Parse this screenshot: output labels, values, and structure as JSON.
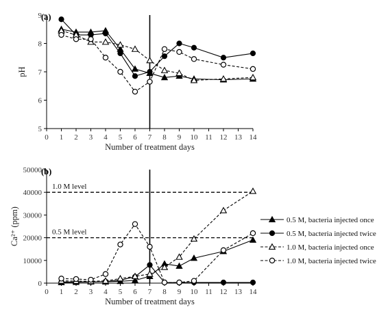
{
  "chart_data": [
    {
      "type": "line",
      "panel_label": "(a)",
      "xlabel": "Number of treatment days",
      "ylabel": "pH",
      "xlim": [
        0,
        14
      ],
      "ylim": [
        5,
        9
      ],
      "xticks": [
        "0",
        "1",
        "2",
        "3",
        "4",
        "5",
        "6",
        "7",
        "8",
        "9",
        "10",
        "11",
        "12",
        "13",
        "14"
      ],
      "yticks": [
        "5",
        "6",
        "7",
        "8",
        "9"
      ],
      "vline_x": 7,
      "grid": false,
      "series": [
        {
          "key": "s1",
          "marker": "filled-triangle",
          "dashed": false,
          "x": [
            1,
            2,
            3,
            4,
            5,
            6,
            7,
            8,
            9,
            10,
            12,
            14
          ],
          "y": [
            8.5,
            8.4,
            8.4,
            8.45,
            7.8,
            7.1,
            6.95,
            6.8,
            6.85,
            6.75,
            6.72,
            6.75
          ]
        },
        {
          "key": "s2",
          "marker": "filled-circle",
          "dashed": false,
          "x": [
            1,
            2,
            3,
            4,
            5,
            6,
            7,
            8,
            9,
            10,
            12,
            14
          ],
          "y": [
            8.85,
            8.3,
            8.3,
            8.35,
            7.65,
            6.85,
            7.0,
            7.55,
            8.0,
            7.85,
            7.5,
            7.65
          ]
        },
        {
          "key": "s3",
          "marker": "open-triangle",
          "dashed": true,
          "x": [
            1,
            2,
            3,
            4,
            5,
            6,
            7,
            8,
            9,
            10,
            12,
            14
          ],
          "y": [
            8.45,
            8.3,
            8.05,
            8.05,
            7.95,
            7.8,
            7.4,
            7.05,
            6.95,
            6.7,
            6.75,
            6.8
          ]
        },
        {
          "key": "s4",
          "marker": "open-circle",
          "dashed": true,
          "x": [
            1,
            2,
            3,
            4,
            5,
            6,
            7,
            8,
            9,
            10,
            12,
            14
          ],
          "y": [
            8.3,
            8.15,
            8.15,
            7.5,
            7.0,
            6.3,
            6.65,
            7.8,
            7.7,
            7.45,
            7.25,
            7.1
          ]
        }
      ]
    },
    {
      "type": "line",
      "panel_label": "(b)",
      "xlabel": "Number of treatment days",
      "ylabel": "Ca²⁺ (ppm)",
      "xlim": [
        0,
        14
      ],
      "ylim": [
        0,
        50000
      ],
      "xticks": [
        "0",
        "1",
        "2",
        "3",
        "4",
        "5",
        "6",
        "7",
        "8",
        "9",
        "10",
        "11",
        "12",
        "13",
        "14"
      ],
      "yticks": [
        "0",
        "10000",
        "20000",
        "30000",
        "40000",
        "50000"
      ],
      "vline_x": 7,
      "grid": false,
      "reference_lines": [
        {
          "y": 40000,
          "label": "1.0 M level"
        },
        {
          "y": 20000,
          "label": "0.5 M level"
        }
      ],
      "series": [
        {
          "name": "0.5 M, bacteria injected once",
          "marker": "filled-triangle",
          "dashed": false,
          "x": [
            1,
            2,
            3,
            4,
            5,
            6,
            7,
            8,
            9,
            10,
            12,
            14
          ],
          "y": [
            300,
            400,
            600,
            600,
            800,
            1200,
            3000,
            8500,
            7500,
            11000,
            14000,
            19000
          ]
        },
        {
          "name": "0.5 M, bacteria injected twice",
          "marker": "filled-circle",
          "dashed": false,
          "x": [
            1,
            2,
            3,
            4,
            5,
            6,
            7,
            8,
            9,
            10,
            12,
            14
          ],
          "y": [
            500,
            500,
            500,
            700,
            1300,
            2800,
            8000,
            300,
            200,
            300,
            300,
            300
          ]
        },
        {
          "name": "1.0 M, bacteria injected once",
          "marker": "open-triangle",
          "dashed": true,
          "x": [
            1,
            2,
            3,
            4,
            5,
            6,
            7,
            8,
            9,
            10,
            12,
            14
          ],
          "y": [
            1000,
            900,
            800,
            1000,
            2000,
            3000,
            4000,
            7000,
            11500,
            19500,
            32000,
            40500
          ]
        },
        {
          "name": "1.0 M, bacteria injected twice",
          "marker": "open-circle",
          "dashed": true,
          "x": [
            1,
            2,
            3,
            4,
            5,
            6,
            7,
            8,
            9,
            10,
            12,
            14
          ],
          "y": [
            2000,
            1800,
            1500,
            4000,
            17000,
            26000,
            16000,
            300,
            300,
            1000,
            14500,
            22000
          ]
        }
      ]
    }
  ]
}
